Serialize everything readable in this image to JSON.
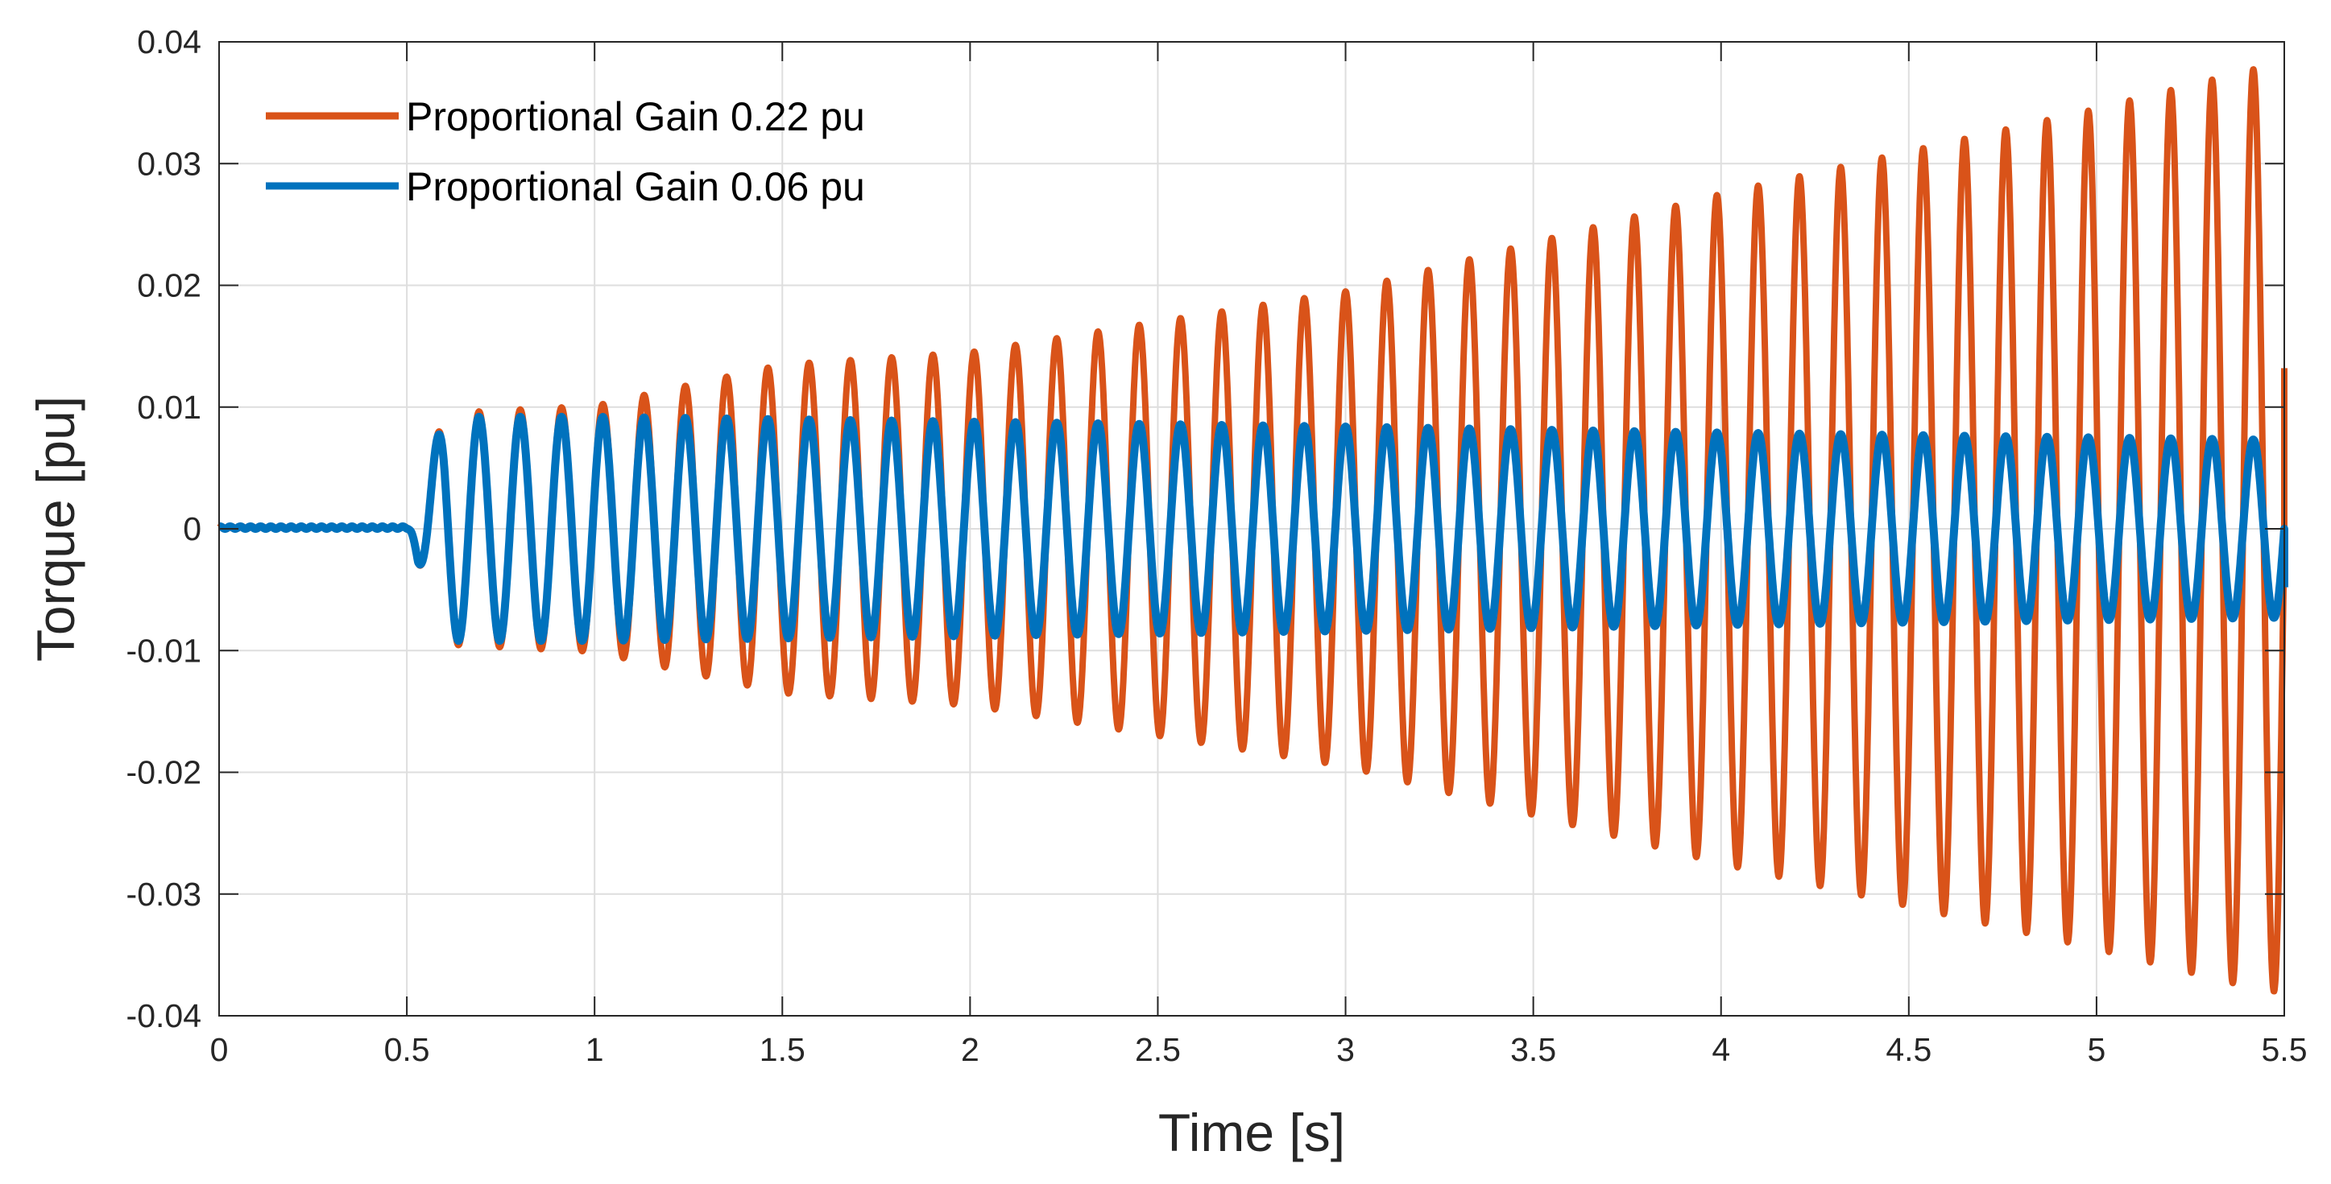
{
  "chart_data": {
    "type": "line",
    "title": "",
    "xlabel": "Time [s]",
    "ylabel": "Torque [pu]",
    "xlim": [
      0,
      5.5
    ],
    "ylim": [
      -0.04,
      0.04
    ],
    "xticks": [
      0,
      0.5,
      1,
      1.5,
      2,
      2.5,
      3,
      3.5,
      4,
      4.5,
      5,
      5.5
    ],
    "xtick_labels": [
      "0",
      "0.5",
      "1",
      "1.5",
      "2",
      "2.5",
      "3",
      "3.5",
      "4",
      "4.5",
      "5",
      "5.5"
    ],
    "yticks": [
      -0.04,
      -0.03,
      -0.02,
      -0.01,
      0,
      0.01,
      0.02,
      0.03,
      0.04
    ],
    "ytick_labels": [
      "-0.04",
      "-0.03",
      "-0.02",
      "-0.01",
      "0",
      "0.01",
      "0.02",
      "0.03",
      "0.04"
    ],
    "grid": true,
    "legend_position": "top-left",
    "oscillation_start_time": 0.5,
    "oscillation_frequency_hz": 9.1,
    "series": [
      {
        "name": "Proportional Gain 0.22 pu",
        "color": "#D95319",
        "behavior": "growing oscillation",
        "pre_disturbance_value": 0.0002,
        "amplitude_points": [
          [
            0.5,
            0.0
          ],
          [
            0.6,
            0.0095
          ],
          [
            1.0,
            0.0101
          ],
          [
            1.5,
            0.0135
          ],
          [
            2.0,
            0.0145
          ],
          [
            2.5,
            0.017
          ],
          [
            3.0,
            0.0195
          ],
          [
            3.5,
            0.0235
          ],
          [
            4.0,
            0.0275
          ],
          [
            4.5,
            0.031
          ],
          [
            5.0,
            0.0345
          ],
          [
            5.45,
            0.038
          ]
        ],
        "end_value": 0.0132
      },
      {
        "name": "Proportional Gain 0.06 pu",
        "color": "#0072BD",
        "behavior": "sustained oscillation",
        "pre_disturbance_value": 0.0002,
        "amplitude_points": [
          [
            0.5,
            0.0
          ],
          [
            0.6,
            0.0092
          ],
          [
            1.0,
            0.0092
          ],
          [
            2.0,
            0.0088
          ],
          [
            3.0,
            0.0084
          ],
          [
            4.0,
            0.0079
          ],
          [
            5.0,
            0.0075
          ],
          [
            5.5,
            0.0073
          ]
        ],
        "end_value": -0.0048
      }
    ]
  }
}
